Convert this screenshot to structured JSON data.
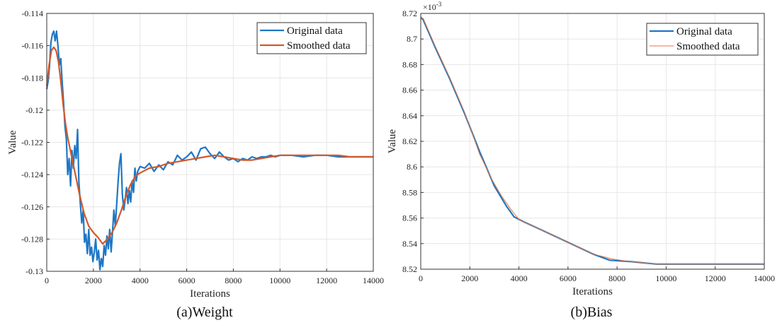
{
  "chart_data": [
    {
      "type": "line",
      "caption": "(a)Weight",
      "xlabel": "Iterations",
      "ylabel": "Value",
      "xlim": [
        0,
        14000
      ],
      "ylim": [
        -0.13,
        -0.114
      ],
      "xticks": [
        0,
        2000,
        4000,
        6000,
        8000,
        10000,
        12000,
        14000
      ],
      "yticks": [
        -0.13,
        -0.128,
        -0.126,
        -0.124,
        -0.122,
        -0.12,
        -0.118,
        -0.116,
        -0.114
      ],
      "ytick_labels": [
        "-0.13",
        "-0.128",
        "-0.126",
        "-0.124",
        "-0.122",
        "-0.12",
        "-0.118",
        "-0.116",
        "-0.114"
      ],
      "legend_position": "top-right",
      "grid": true,
      "series": [
        {
          "name": "Original data",
          "color": "#1f77c4",
          "x": [
            0,
            60,
            120,
            180,
            240,
            300,
            360,
            420,
            480,
            540,
            600,
            660,
            720,
            780,
            840,
            900,
            960,
            1020,
            1080,
            1140,
            1200,
            1260,
            1320,
            1380,
            1440,
            1500,
            1560,
            1620,
            1680,
            1740,
            1800,
            1860,
            1920,
            1980,
            2040,
            2100,
            2160,
            2220,
            2280,
            2340,
            2400,
            2460,
            2520,
            2580,
            2640,
            2700,
            2760,
            2820,
            2880,
            2940,
            3000,
            3060,
            3120,
            3180,
            3240,
            3300,
            3360,
            3420,
            3480,
            3540,
            3600,
            3660,
            3720,
            3780,
            3840,
            3900,
            4000,
            4200,
            4400,
            4600,
            4800,
            5000,
            5200,
            5400,
            5600,
            5800,
            6000,
            6200,
            6400,
            6600,
            6800,
            7000,
            7200,
            7400,
            7600,
            7800,
            8000,
            8200,
            8400,
            8600,
            8800,
            9000,
            9200,
            9400,
            9600,
            9800,
            10000,
            10500,
            11000,
            11500,
            12000,
            12500,
            13000,
            13500,
            14000
          ],
          "values": [
            -0.1187,
            -0.1182,
            -0.1172,
            -0.1158,
            -0.1153,
            -0.1151,
            -0.1157,
            -0.1151,
            -0.116,
            -0.1172,
            -0.1168,
            -0.1182,
            -0.1195,
            -0.121,
            -0.1218,
            -0.124,
            -0.123,
            -0.1247,
            -0.1225,
            -0.1236,
            -0.1222,
            -0.123,
            -0.1212,
            -0.1245,
            -0.1258,
            -0.127,
            -0.1262,
            -0.1282,
            -0.1277,
            -0.1289,
            -0.1274,
            -0.129,
            -0.1285,
            -0.1294,
            -0.1288,
            -0.128,
            -0.1293,
            -0.1287,
            -0.1299,
            -0.1292,
            -0.1297,
            -0.1284,
            -0.129,
            -0.1278,
            -0.1286,
            -0.1274,
            -0.1288,
            -0.1275,
            -0.1262,
            -0.1272,
            -0.1258,
            -0.1244,
            -0.1233,
            -0.1227,
            -0.1252,
            -0.1262,
            -0.1256,
            -0.1248,
            -0.1258,
            -0.125,
            -0.1257,
            -0.1244,
            -0.1251,
            -0.1236,
            -0.1244,
            -0.1238,
            -0.1235,
            -0.1236,
            -0.1233,
            -0.1238,
            -0.1234,
            -0.1237,
            -0.1232,
            -0.1234,
            -0.1228,
            -0.1231,
            -0.1229,
            -0.1226,
            -0.1231,
            -0.1224,
            -0.1223,
            -0.1227,
            -0.123,
            -0.1226,
            -0.1229,
            -0.1231,
            -0.123,
            -0.1232,
            -0.123,
            -0.1231,
            -0.1229,
            -0.123,
            -0.1229,
            -0.1229,
            -0.1228,
            -0.1229,
            -0.1228,
            -0.1228,
            -0.1229,
            -0.1228,
            -0.1228,
            -0.1229,
            -0.1229,
            -0.1229,
            -0.1229
          ]
        },
        {
          "name": "Smoothed data",
          "color": "#d4582a",
          "x": [
            0,
            100,
            200,
            300,
            400,
            500,
            600,
            700,
            800,
            900,
            1000,
            1200,
            1400,
            1600,
            1800,
            2000,
            2200,
            2400,
            2600,
            2800,
            3000,
            3200,
            3400,
            3600,
            3800,
            4000,
            4400,
            4800,
            5200,
            5600,
            6000,
            6400,
            6800,
            7200,
            7600,
            8000,
            8400,
            8800,
            9200,
            9600,
            10000,
            10500,
            11000,
            11500,
            12000,
            12500,
            13000,
            13500,
            14000
          ],
          "values": [
            -0.1185,
            -0.1172,
            -0.1163,
            -0.1161,
            -0.1163,
            -0.117,
            -0.1182,
            -0.1196,
            -0.1208,
            -0.1217,
            -0.1224,
            -0.1238,
            -0.1252,
            -0.1264,
            -0.1272,
            -0.1276,
            -0.1279,
            -0.1283,
            -0.128,
            -0.1276,
            -0.127,
            -0.1262,
            -0.1253,
            -0.1246,
            -0.1241,
            -0.1239,
            -0.1236,
            -0.1235,
            -0.1233,
            -0.1232,
            -0.1231,
            -0.123,
            -0.1229,
            -0.1228,
            -0.1229,
            -0.123,
            -0.1231,
            -0.1231,
            -0.123,
            -0.1229,
            -0.1228,
            -0.1228,
            -0.1228,
            -0.1228,
            -0.1228,
            -0.1228,
            -0.1229,
            -0.1229,
            -0.1229
          ]
        }
      ]
    },
    {
      "type": "line",
      "caption": "(b)Bias",
      "xlabel": "Iterations",
      "ylabel": "Value",
      "scale_label": "×10",
      "scale_exponent": "-3",
      "xlim": [
        0,
        14000
      ],
      "ylim": [
        8.52,
        8.72
      ],
      "xticks": [
        0,
        2000,
        4000,
        6000,
        8000,
        10000,
        12000,
        14000
      ],
      "yticks": [
        8.52,
        8.54,
        8.56,
        8.58,
        8.6,
        8.62,
        8.64,
        8.66,
        8.68,
        8.7,
        8.72
      ],
      "ytick_labels": [
        "8.52",
        "8.54",
        "8.56",
        "8.58",
        "8.6",
        "8.62",
        "8.64",
        "8.66",
        "8.68",
        "8.7",
        "8.72"
      ],
      "legend_position": "top-right",
      "grid": true,
      "series": [
        {
          "name": "Original data",
          "color": "#1f77c4",
          "x": [
            0,
            100,
            600,
            1200,
            1800,
            2400,
            3000,
            3500,
            3800,
            4200,
            5000,
            6000,
            7000,
            7700,
            8500,
            9600,
            10500,
            12000,
            14000
          ],
          "values": [
            8.717,
            8.715,
            8.693,
            8.668,
            8.641,
            8.612,
            8.585,
            8.569,
            8.561,
            8.557,
            8.55,
            8.541,
            8.532,
            8.527,
            8.526,
            8.524,
            8.524,
            8.524,
            8.524
          ],
          "linewidth": 2.2
        },
        {
          "name": "Smoothed data",
          "color": "#e8743a",
          "x": [
            0,
            100,
            600,
            1200,
            1800,
            2400,
            2900,
            3300,
            3700,
            4000,
            4300,
            5000,
            6000,
            7000,
            7800,
            8500,
            9600,
            10500,
            12000,
            14000
          ],
          "values": [
            8.717,
            8.716,
            8.694,
            8.669,
            8.642,
            8.61,
            8.59,
            8.577,
            8.566,
            8.559,
            8.556,
            8.55,
            8.541,
            8.532,
            8.528,
            8.526,
            8.524,
            8.524,
            8.524,
            8.524
          ],
          "linewidth": 1.0
        }
      ]
    }
  ]
}
